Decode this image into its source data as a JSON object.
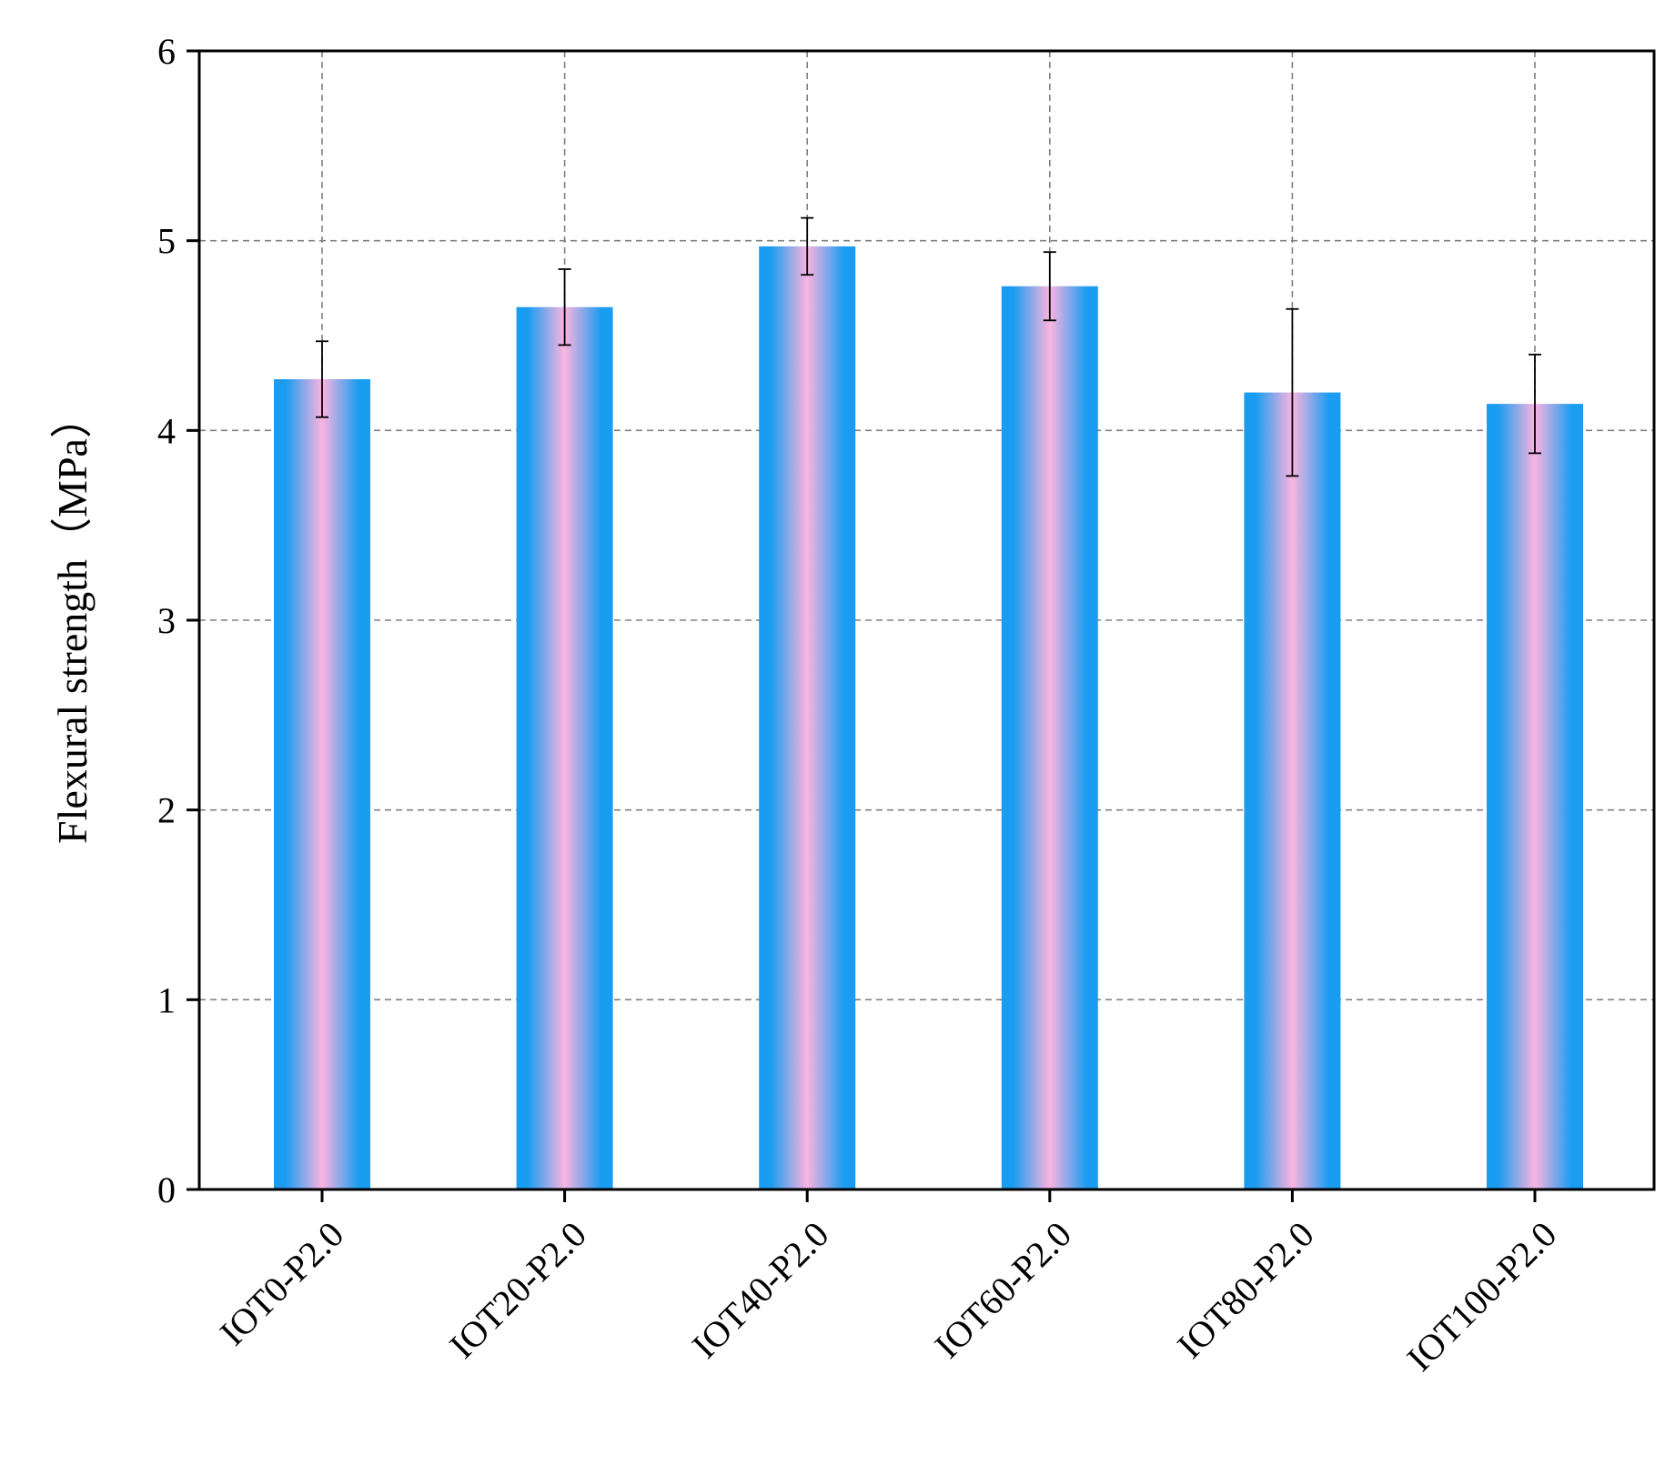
{
  "chart_data": {
    "type": "bar",
    "title": "",
    "xlabel": "",
    "ylabel": "Flexural strength（MPa）",
    "ylim": [
      0,
      6
    ],
    "yticks": [
      "0",
      "1",
      "2",
      "3",
      "4",
      "5",
      "6"
    ],
    "categories": [
      "IOT0-P2.0",
      "IOT20-P2.0",
      "IOT40-P2.0",
      "IOT60-P2.0",
      "IOT80-P2.0",
      "IOT100-P2.0"
    ],
    "values": [
      4.27,
      4.65,
      4.97,
      4.76,
      4.2,
      4.14
    ],
    "errors": [
      0.2,
      0.2,
      0.15,
      0.18,
      0.44,
      0.26
    ],
    "grid": true,
    "colors": {
      "bar_edge": "#1a9cf0",
      "bar_center": "#fbb4e0",
      "grid": "#808080",
      "axis": "#000000"
    }
  }
}
